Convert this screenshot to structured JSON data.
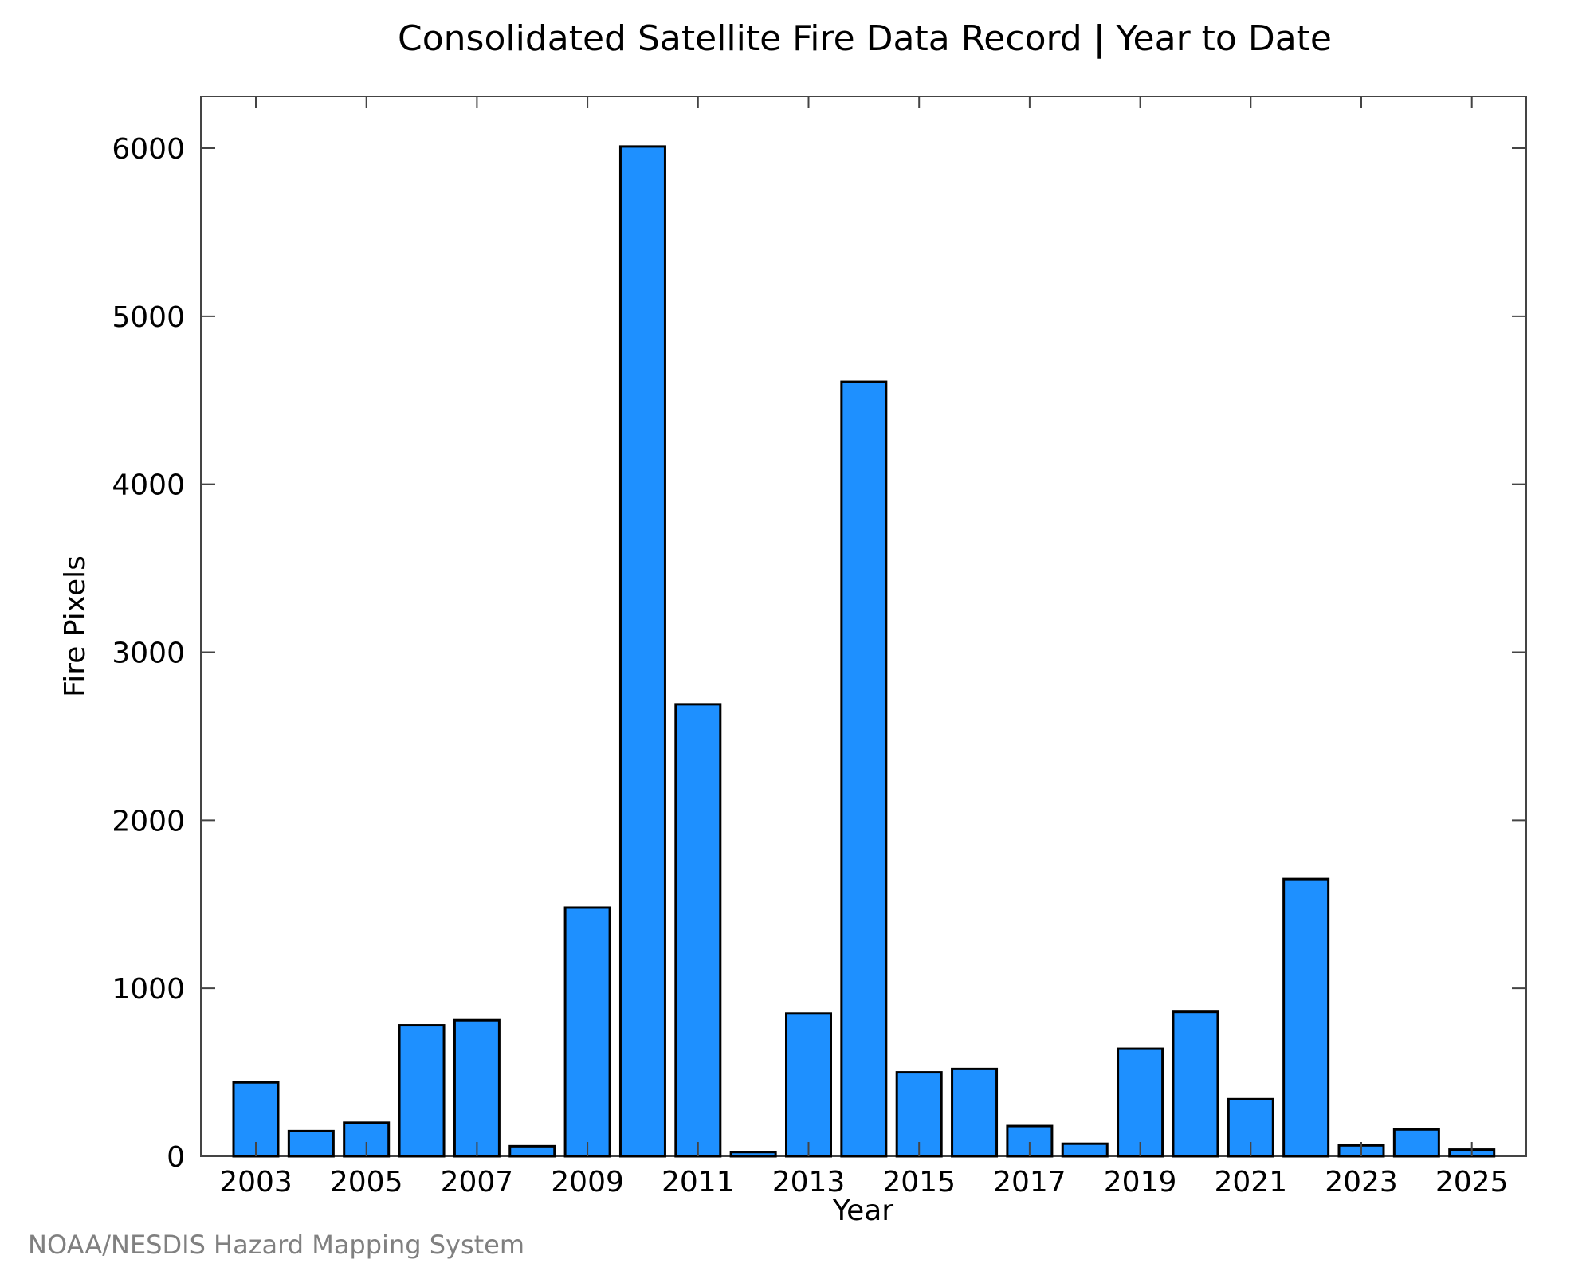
{
  "chart_data": {
    "type": "bar",
    "title": "Consolidated Satellite Fire Data Record | Year to Date",
    "xlabel": "Year",
    "ylabel": "Fire Pixels",
    "categories": [
      "2003",
      "2004",
      "2005",
      "2006",
      "2007",
      "2008",
      "2009",
      "2010",
      "2011",
      "2012",
      "2013",
      "2014",
      "2015",
      "2016",
      "2017",
      "2018",
      "2019",
      "2020",
      "2021",
      "2022",
      "2023",
      "2024",
      "2025"
    ],
    "x_tick_labels": [
      "2003",
      "2005",
      "2007",
      "2009",
      "2011",
      "2013",
      "2015",
      "2017",
      "2019",
      "2021",
      "2023",
      "2025"
    ],
    "y_tick_labels": [
      "0",
      "1000",
      "2000",
      "3000",
      "4000",
      "5000",
      "6000"
    ],
    "y_ticks": [
      0,
      1000,
      2000,
      3000,
      4000,
      5000,
      6000
    ],
    "values": [
      440,
      150,
      200,
      780,
      810,
      60,
      1480,
      6010,
      2690,
      25,
      850,
      4610,
      500,
      520,
      180,
      75,
      640,
      860,
      340,
      1650,
      65,
      160,
      40
    ],
    "ylim": [
      0,
      6300
    ],
    "grid": false,
    "bar_color": "#1e90ff",
    "edge_color": "#000000"
  },
  "credit": "NOAA/NESDIS Hazard Mapping System"
}
